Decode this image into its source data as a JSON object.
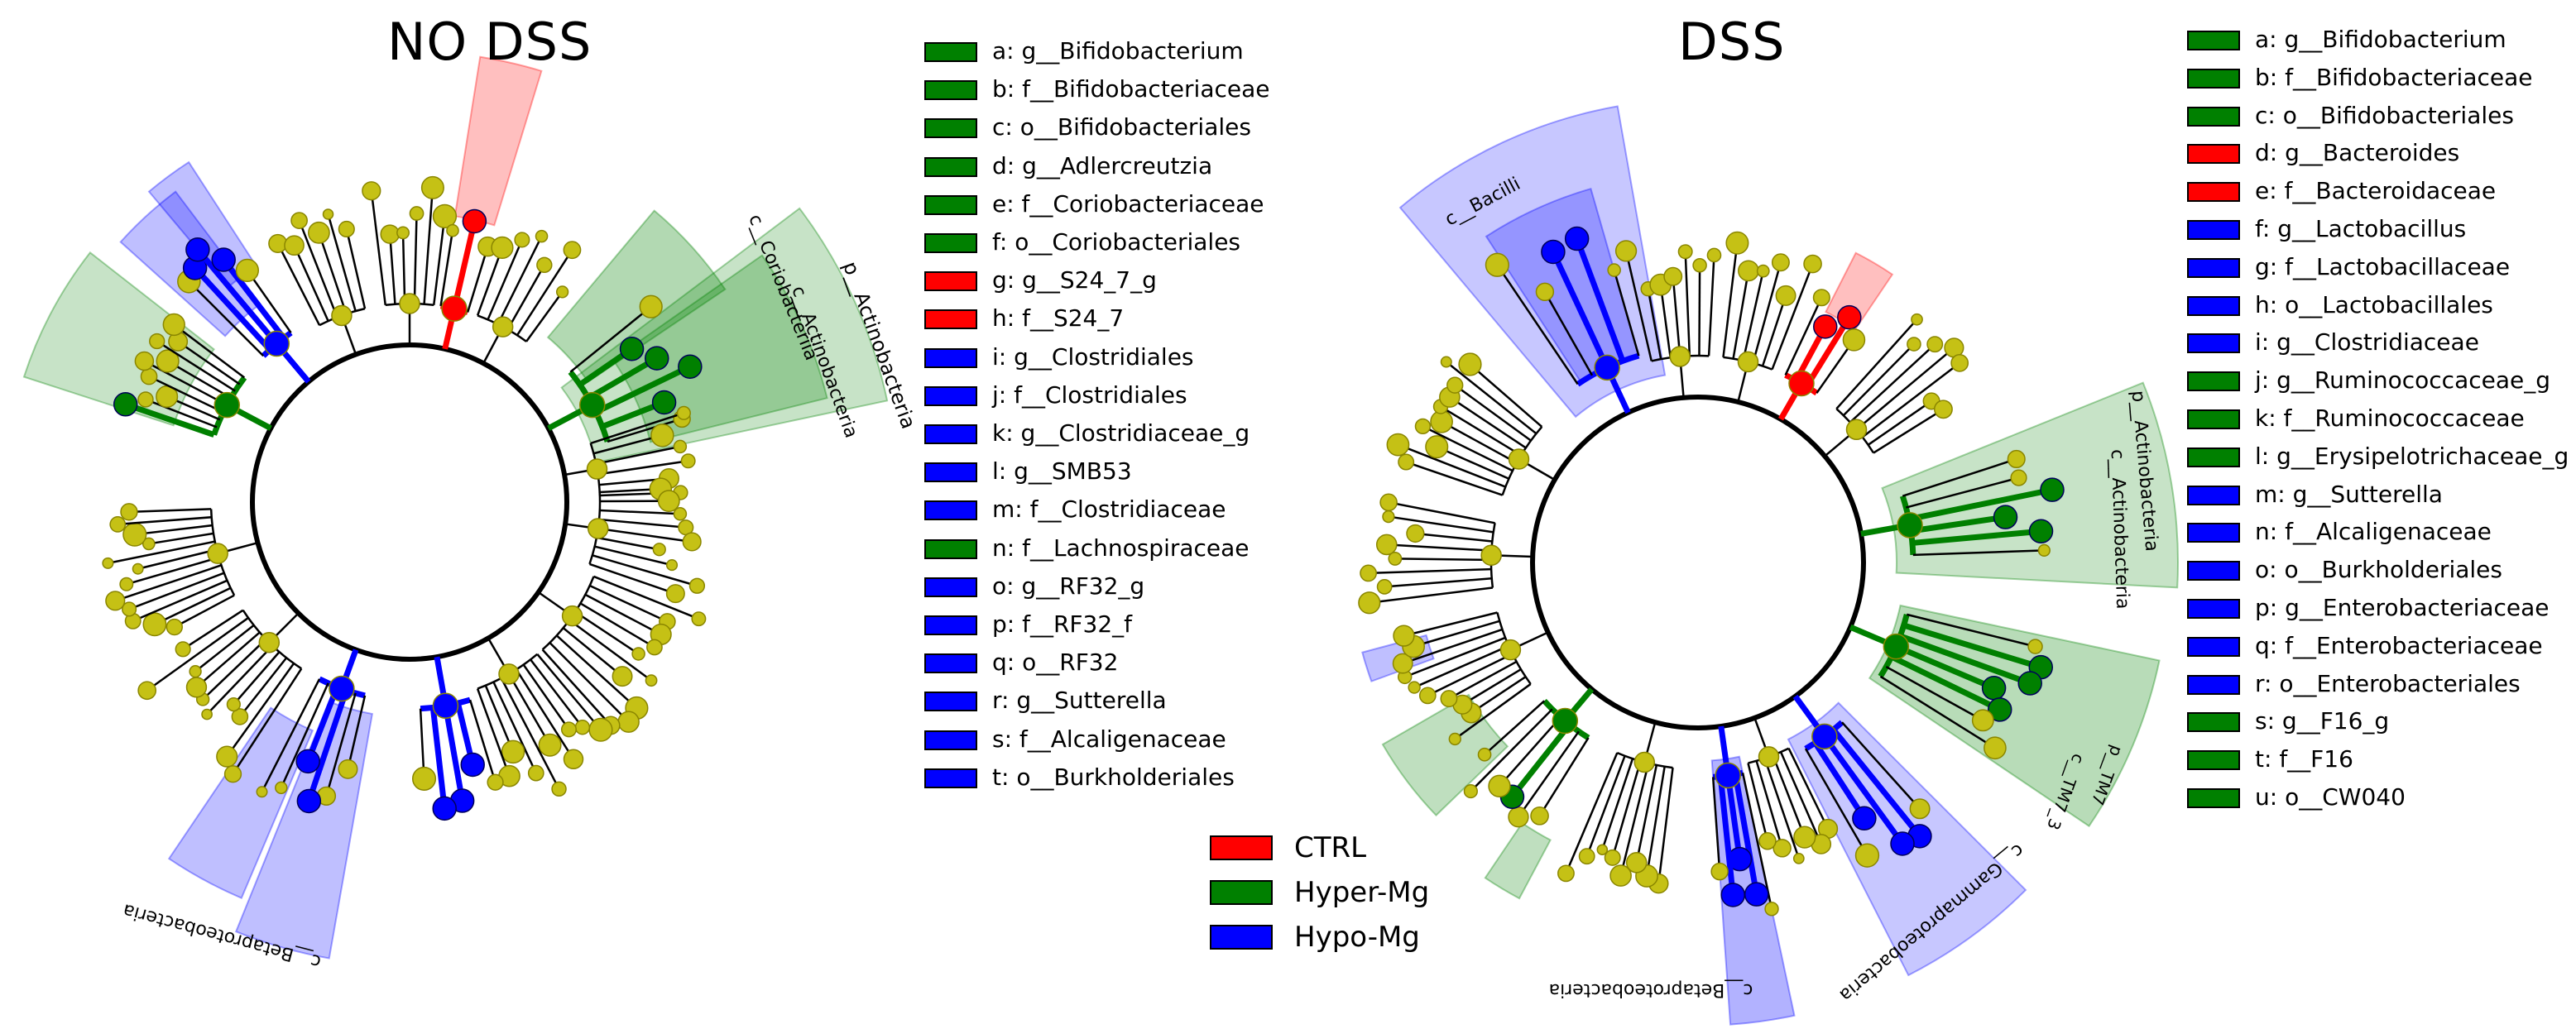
{
  "colors": {
    "ctrl": "#ff0000",
    "hyper": "#008000",
    "hypo": "#0000ff",
    "node": "#c5c115",
    "node_stroke": "#8a8600"
  },
  "panels": [
    {
      "title": "NO DSS",
      "legend": [
        {
          "label": "a: g__Bifidobacterium",
          "group": "hyper"
        },
        {
          "label": "b: f__Bifidobacteriaceae",
          "group": "hyper"
        },
        {
          "label": "c: o__Bifidobacteriales",
          "group": "hyper"
        },
        {
          "label": "d: g__Adlercreutzia",
          "group": "hyper"
        },
        {
          "label": "e: f__Coriobacteriaceae",
          "group": "hyper"
        },
        {
          "label": "f: o__Coriobacteriales",
          "group": "hyper"
        },
        {
          "label": "g: g__S24_7_g",
          "group": "ctrl"
        },
        {
          "label": "h: f__S24_7",
          "group": "ctrl"
        },
        {
          "label": "i: g__Clostridiales",
          "group": "hypo"
        },
        {
          "label": "j: f__Clostridiales",
          "group": "hypo"
        },
        {
          "label": "k: g__Clostridiaceae_g",
          "group": "hypo"
        },
        {
          "label": "l: g__SMB53",
          "group": "hypo"
        },
        {
          "label": "m: f__Clostridiaceae",
          "group": "hypo"
        },
        {
          "label": "n: f__Lachnospiraceae",
          "group": "hyper"
        },
        {
          "label": "o: g__RF32_g",
          "group": "hypo"
        },
        {
          "label": "p: f__RF32_f",
          "group": "hypo"
        },
        {
          "label": "q: o__RF32",
          "group": "hypo"
        },
        {
          "label": "r: g__Sutterella",
          "group": "hypo"
        },
        {
          "label": "s: f__Alcaligenaceae",
          "group": "hypo"
        },
        {
          "label": "t: o__Burkholderiales",
          "group": "hypo"
        }
      ],
      "clade_labels": [
        "p__Actinobacteria",
        "c__Coriobacteriia",
        "c__Actinobacteria",
        "c__Betaproteobacteria"
      ]
    },
    {
      "title": "DSS",
      "legend": [
        {
          "label": "a: g__Bifidobacterium",
          "group": "hyper"
        },
        {
          "label": "b: f__Bifidobacteriaceae",
          "group": "hyper"
        },
        {
          "label": "c: o__Bifidobacteriales",
          "group": "hyper"
        },
        {
          "label": "d: g__Bacteroides",
          "group": "ctrl"
        },
        {
          "label": "e: f__Bacteroidaceae",
          "group": "ctrl"
        },
        {
          "label": "f: g__Lactobacillus",
          "group": "hypo"
        },
        {
          "label": "g: f__Lactobacillaceae",
          "group": "hypo"
        },
        {
          "label": "h: o__Lactobacillales",
          "group": "hypo"
        },
        {
          "label": "i: g__Clostridiaceae",
          "group": "hypo"
        },
        {
          "label": "j: g__Ruminococcaceae_g",
          "group": "hyper"
        },
        {
          "label": "k: f__Ruminococcaceae",
          "group": "hyper"
        },
        {
          "label": "l: g__Erysipelotrichaceae_g",
          "group": "hyper"
        },
        {
          "label": "m: g__Sutterella",
          "group": "hypo"
        },
        {
          "label": "n: f__Alcaligenaceae",
          "group": "hypo"
        },
        {
          "label": "o: o__Burkholderiales",
          "group": "hypo"
        },
        {
          "label": "p: g__Enterobacteriaceae",
          "group": "hypo"
        },
        {
          "label": "q: f__Enterobacteriaceae",
          "group": "hypo"
        },
        {
          "label": "r: o__Enterobacteriales",
          "group": "hypo"
        },
        {
          "label": "s: g__F16_g",
          "group": "hyper"
        },
        {
          "label": "t: f__F16",
          "group": "hyper"
        },
        {
          "label": "u: o__CW040",
          "group": "hyper"
        }
      ],
      "clade_labels": [
        "c__Bacilli",
        "p__Actinobacteria",
        "c__Actinobacteria",
        "p__TM7",
        "c__TM7_3",
        "c__Gammaproteobacteria",
        "c__Betaproteobacteria"
      ]
    }
  ],
  "class_legend": [
    {
      "label": "CTRL",
      "group": "ctrl"
    },
    {
      "label": "Hyper-Mg",
      "group": "hyper"
    },
    {
      "label": "Hypo-Mg",
      "group": "hypo"
    }
  ]
}
